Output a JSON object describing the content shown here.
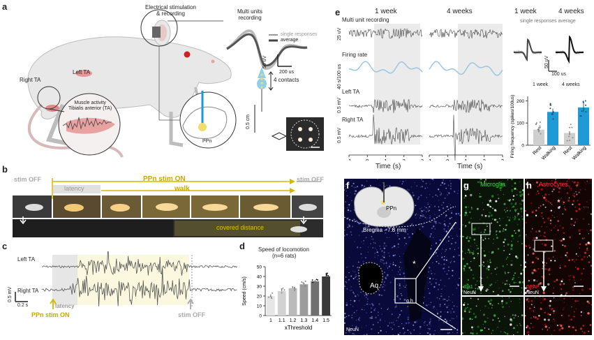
{
  "panel_a": {
    "label": "a",
    "stim_label": "Electrical stimulation\n& recording",
    "multi_units_label": "Multi units\nrecording",
    "legend_single": "single responses",
    "legend_average": "average",
    "scale_v": "50 uV",
    "scale_t": "200 us",
    "right_ta": "Right TA",
    "left_ta": "Left TA",
    "muscle_label": "Muscle activity\nTibialis anterior (TA)",
    "contacts": "4 contacts",
    "scale_cm": "0.5 cm",
    "ppn": "PPn"
  },
  "panel_b": {
    "label": "b",
    "stim_off_left": "stim OFF",
    "stim_on": "PPn stim ON",
    "stim_off_right": "stim OFF",
    "latency": "latency",
    "walk": "walk",
    "covered": "covered distance"
  },
  "panel_c": {
    "label": "c",
    "left_ta": "Left TA",
    "right_ta": "Right TA",
    "scale_v": "0.5 mV",
    "scale_t": "0.2 s",
    "latency": "latency",
    "stim_on": "PPn stim ON",
    "stim_off": "stim OFF"
  },
  "panel_d": {
    "label": "d",
    "chart_data": {
      "type": "bar",
      "title": "Speed of locomotion",
      "subtitle": "(n=6 rats)",
      "categories": [
        "1",
        "1.1",
        "1.2",
        "1.3",
        "1.4",
        "1.5"
      ],
      "values": [
        20,
        25,
        28,
        32,
        35,
        40
      ],
      "errors": [
        1.5,
        2,
        1.5,
        1.5,
        1.5,
        2.5
      ],
      "xlabel": "xThreshold",
      "ylabel": "Speed (cm/s)",
      "ylim": [
        0,
        50
      ],
      "yticks": [
        0,
        10,
        20,
        30,
        40,
        50
      ],
      "colors": [
        "#e6e6e6",
        "#d2d2d2",
        "#bababa",
        "#9c9c9c",
        "#707070",
        "#3a3a3a"
      ]
    }
  },
  "panel_e": {
    "label": "e",
    "week1": "1 week",
    "week4": "4 weeks",
    "week1_right": "1 week",
    "week4_right": "4 weeks",
    "single_avg": "single responses average",
    "rows": [
      {
        "label": "Multi unit recording",
        "scale": "25 uV"
      },
      {
        "label": "Firing rate",
        "scale": "40 s/100 us"
      },
      {
        "label": "Left TA",
        "scale": "0.5 mV"
      },
      {
        "label": "Right TA",
        "scale": "0.5 mV"
      }
    ],
    "time_label": "Time (s)",
    "time_ticks": [
      "-1",
      "0",
      "1",
      "2",
      "3"
    ],
    "scale_v": "50 uV",
    "scale_t": "100 us",
    "chart_data": {
      "type": "bar",
      "ylabel": "Firing frequency (spikes/100us)",
      "groups": [
        "1 week",
        "4 weeks"
      ],
      "categories": [
        "Rest",
        "Walking",
        "Rest",
        "Walking"
      ],
      "values": [
        70,
        150,
        55,
        170
      ],
      "errors": [
        12,
        15,
        8,
        20
      ],
      "yticks": [
        0,
        100,
        200
      ],
      "ylim": [
        0,
        220
      ],
      "colors": [
        "#cfcfcf",
        "#1f9ad6",
        "#cfcfcf",
        "#1f9ad6"
      ]
    }
  },
  "panel_f": {
    "label": "f",
    "ppn": "PPn",
    "bregma": "Bregma - 7.8 mm",
    "aq": "Aq",
    "neun": "NeuN",
    "gh": "g,h"
  },
  "panel_g": {
    "label": "g",
    "title": "Microglia",
    "marker": "Iba1",
    "neun": "NeuN"
  },
  "panel_h": {
    "label": "h",
    "title": "Astrocytes",
    "marker": "GFAP",
    "neun": "NeuN"
  }
}
